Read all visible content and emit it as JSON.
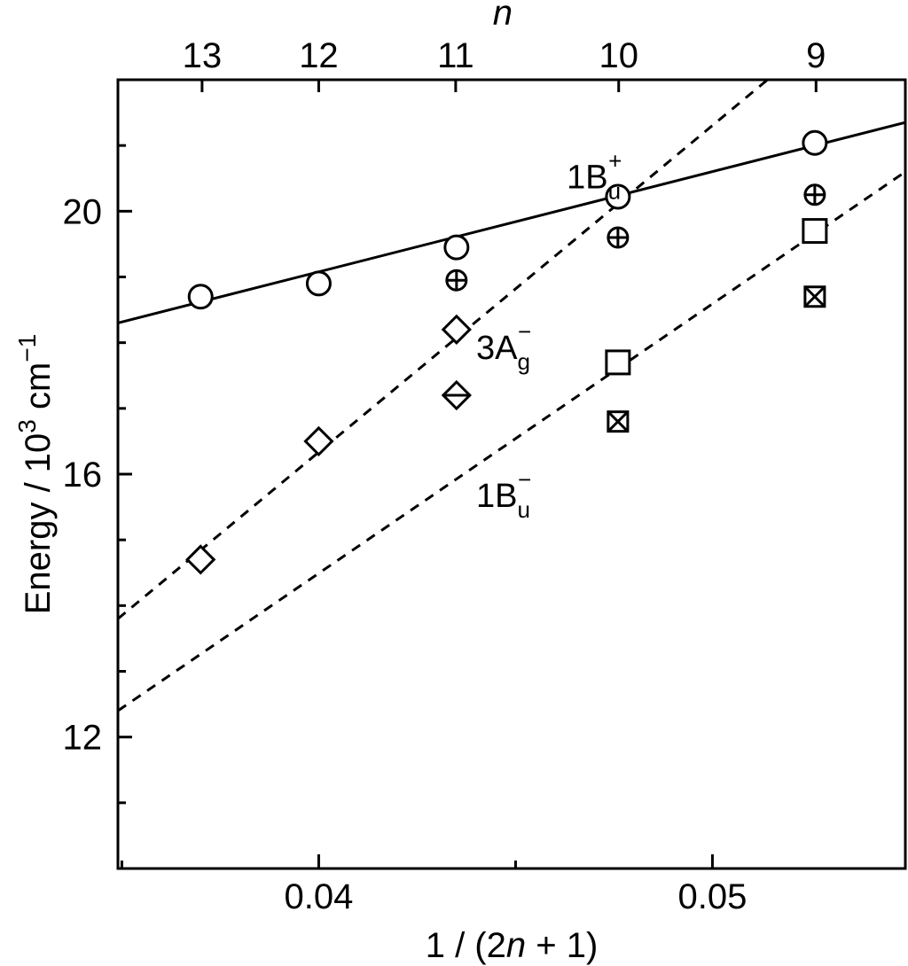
{
  "chart_data": {
    "type": "scatter",
    "title": "",
    "xlabel": {
      "prefix": "1 / (2",
      "var": "n",
      "suffix": " + 1)"
    },
    "ylabel": {
      "base": "Energy / 10",
      "exp": "3",
      "unit": " cm",
      "unit_exp": "−1"
    },
    "x2label": "n",
    "xlim": [
      0.0349,
      0.0549
    ],
    "ylim": [
      10,
      22
    ],
    "xticks": [
      {
        "value": 0.04,
        "label": "0.04"
      },
      {
        "value": 0.05,
        "label": "0.05"
      }
    ],
    "x_minor_ticks": [
      0.035,
      0.045,
      0.055
    ],
    "yticks": [
      {
        "value": 12,
        "label": "12"
      },
      {
        "value": 16,
        "label": "16"
      },
      {
        "value": 20,
        "label": "20"
      }
    ],
    "y_minor_ticks": [
      11,
      13,
      14,
      15,
      17,
      18,
      19,
      21
    ],
    "top_ticks": [
      {
        "value": 13,
        "label": "13"
      },
      {
        "value": 12,
        "label": "12"
      },
      {
        "value": 11,
        "label": "11"
      },
      {
        "value": 10,
        "label": "10"
      },
      {
        "value": 9,
        "label": "9"
      }
    ],
    "series": [
      {
        "marker": "circle",
        "points": [
          {
            "x": 0.037,
            "y": 18.7
          },
          {
            "x": 0.04,
            "y": 18.9
          },
          {
            "x": 0.0435,
            "y": 19.45
          },
          {
            "x": 0.0476,
            "y": 20.22
          },
          {
            "x": 0.0526,
            "y": 21.04
          }
        ]
      },
      {
        "marker": "circle-plus",
        "points": [
          {
            "x": 0.0435,
            "y": 18.95
          },
          {
            "x": 0.0476,
            "y": 19.6
          },
          {
            "x": 0.0526,
            "y": 20.25
          }
        ]
      },
      {
        "marker": "diamond",
        "points": [
          {
            "x": 0.037,
            "y": 14.7
          },
          {
            "x": 0.04,
            "y": 16.5
          },
          {
            "x": 0.0435,
            "y": 18.2
          }
        ]
      },
      {
        "marker": "diamond-line",
        "points": [
          {
            "x": 0.0435,
            "y": 17.2
          }
        ]
      },
      {
        "marker": "square",
        "points": [
          {
            "x": 0.0476,
            "y": 17.7
          },
          {
            "x": 0.0526,
            "y": 19.7
          }
        ]
      },
      {
        "marker": "square-x",
        "points": [
          {
            "x": 0.0476,
            "y": 16.8
          },
          {
            "x": 0.0526,
            "y": 18.7
          }
        ]
      }
    ],
    "lines": [
      {
        "style": "solid",
        "from": [
          0.0349,
          18.3
        ],
        "to": [
          0.0549,
          21.35
        ]
      },
      {
        "style": "dashed",
        "from": [
          0.0349,
          13.8
        ],
        "to": [
          0.0514,
          22.0
        ]
      },
      {
        "style": "dashed",
        "from": [
          0.0349,
          12.4
        ],
        "to": [
          0.0549,
          20.6
        ]
      }
    ],
    "labels": [
      {
        "main": "1B",
        "sub": "u",
        "sup": "+",
        "x": 0.047,
        "y": 20.35
      },
      {
        "main": "3A",
        "sub": "g",
        "sup": "−",
        "x": 0.0447,
        "y": 17.75
      },
      {
        "main": "1B",
        "sub": "u",
        "sup": "−",
        "x": 0.0447,
        "y": 15.5
      }
    ]
  }
}
